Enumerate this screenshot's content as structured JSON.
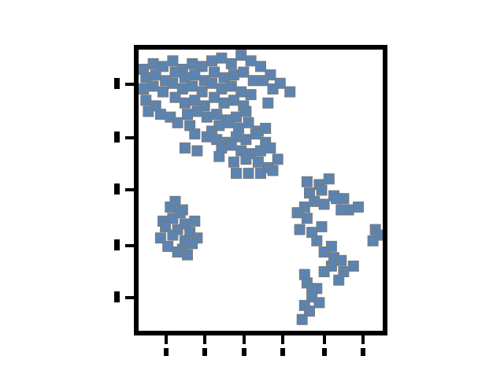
{
  "chart_data": {
    "type": "scatter",
    "title": "",
    "xlabel": "",
    "ylabel": "",
    "xlim": [
      0,
      10
    ],
    "ylim": [
      0,
      10
    ],
    "grid": false,
    "legend": "none",
    "marker": "square",
    "colors": {
      "marker_fill": "#5b84b1",
      "marker_edge": "#7a7a7a",
      "axes": "#000000",
      "background": "#ffffff"
    },
    "x_ticks": [
      "",
      "",
      "",
      "",
      "",
      ""
    ],
    "y_ticks": [
      "",
      "",
      "",
      "",
      ""
    ],
    "series": [
      {
        "x": [
          0.2,
          0.6,
          1.0,
          1.4,
          1.8,
          2.2,
          2.6,
          3.0,
          3.4,
          3.8,
          4.2,
          4.6,
          5.0,
          5.4,
          5.8,
          6.2,
          0.3,
          0.7,
          1.1,
          1.5,
          1.9,
          2.3,
          2.7,
          3.1,
          3.5,
          3.9,
          4.3,
          4.7,
          5.1,
          5.5,
          0.2,
          0.6,
          1.0,
          1.4,
          1.8,
          2.2,
          2.6,
          3.0,
          3.4,
          3.8,
          4.2,
          4.6,
          5.3,
          0.3,
          0.7,
          1.5,
          1.9,
          2.3,
          2.7,
          3.1,
          3.5,
          3.9,
          4.3,
          0.4,
          0.9,
          1.3,
          2.0,
          2.4,
          2.8,
          3.2,
          3.6,
          4.0,
          4.4,
          1.6,
          2.1,
          3.0,
          3.3,
          3.7,
          4.1,
          4.5,
          4.9,
          5.2,
          2.3,
          2.8,
          3.2,
          3.6,
          4.0,
          4.4,
          4.8,
          5.2,
          1.9,
          2.4,
          3.4,
          3.8,
          4.2,
          4.6,
          5.0,
          5.4,
          3.3,
          3.9,
          4.4,
          4.9,
          5.3,
          5.7,
          4.0,
          4.5,
          5.0,
          5.5,
          1.5,
          1.8,
          1.3,
          1.7,
          1.0,
          1.4,
          1.9,
          2.3,
          1.1,
          1.6,
          2.1,
          0.9,
          1.4,
          1.9,
          2.4,
          1.2,
          1.8,
          2.2,
          1.6,
          2.0,
          6.9,
          7.4,
          7.8,
          7.0,
          7.5,
          8.0,
          8.4,
          6.8,
          7.2,
          7.6,
          8.1,
          8.6,
          9.0,
          6.5,
          6.9,
          8.3,
          6.6,
          7.1,
          7.5,
          7.3,
          7.9,
          7.6,
          8.0,
          8.3,
          8.8,
          7.9,
          8.4,
          7.3,
          9.7,
          9.8,
          9.6,
          6.8,
          6.9,
          7.1,
          7.1,
          7.4,
          6.8,
          7.0,
          6.7,
          7.6,
          8.2
        ],
        "y": [
          9.3,
          9.5,
          9.4,
          9.6,
          9.3,
          9.5,
          9.4,
          9.6,
          9.7,
          9.5,
          9.8,
          9.6,
          9.4,
          9.1,
          8.8,
          8.5,
          9.0,
          9.1,
          8.9,
          9.2,
          9.0,
          9.1,
          8.9,
          9.2,
          9.0,
          9.1,
          9.2,
          8.9,
          8.9,
          8.6,
          8.6,
          8.7,
          8.5,
          8.8,
          8.6,
          8.7,
          8.5,
          8.8,
          8.6,
          8.7,
          8.5,
          8.4,
          8.1,
          8.2,
          8.0,
          8.3,
          8.1,
          8.2,
          8.0,
          8.3,
          8.1,
          8.2,
          8.0,
          7.8,
          7.7,
          7.6,
          7.7,
          7.8,
          7.6,
          7.7,
          7.5,
          7.6,
          7.8,
          7.4,
          7.3,
          7.1,
          7.3,
          7.4,
          7.2,
          7.4,
          7.1,
          7.2,
          7.0,
          6.9,
          6.8,
          6.7,
          6.9,
          6.8,
          7.0,
          6.7,
          6.5,
          6.4,
          6.5,
          6.6,
          6.4,
          6.3,
          6.4,
          6.5,
          6.2,
          6.0,
          6.1,
          6.0,
          5.8,
          6.1,
          5.6,
          5.6,
          5.6,
          5.7,
          4.6,
          4.3,
          4.4,
          4.2,
          3.9,
          4.0,
          3.8,
          3.9,
          3.7,
          3.6,
          3.5,
          3.3,
          3.4,
          3.2,
          3.3,
          3.0,
          2.9,
          3.1,
          2.8,
          2.7,
          5.3,
          5.2,
          5.4,
          4.9,
          5.0,
          4.8,
          4.7,
          4.4,
          4.6,
          4.5,
          4.7,
          4.3,
          4.4,
          4.2,
          4.0,
          4.3,
          3.6,
          3.5,
          3.7,
          3.2,
          3.0,
          2.8,
          2.6,
          2.5,
          2.3,
          2.3,
          2.1,
          1.5,
          3.6,
          3.4,
          3.2,
          2.0,
          1.7,
          1.5,
          1.2,
          1.0,
          0.9,
          0.7,
          0.4,
          2.1,
          1.8
        ]
      }
    ]
  }
}
